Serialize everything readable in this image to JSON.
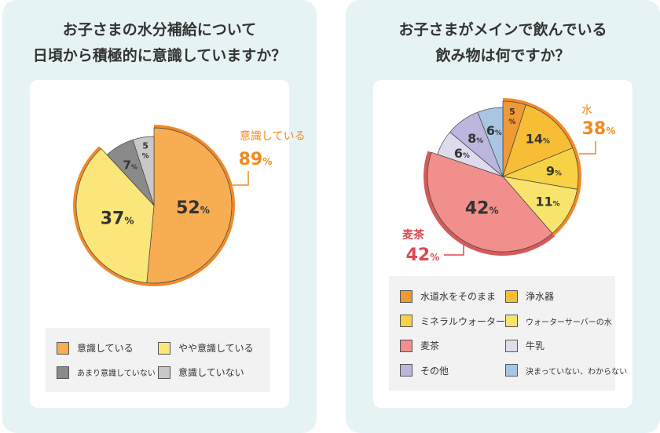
{
  "charts": [
    {
      "title_lines": [
        "お子さまの水分補給について",
        "日頃から積極的に意識していますか？"
      ]
    },
    {
      "title_lines": [
        "お子さまがメインで飲んでいる",
        "飲み物は何ですか？"
      ]
    }
  ],
  "chart_data": [
    {
      "type": "pie",
      "slices": [
        {
          "label": "意識している",
          "value": 52,
          "color": "#f7ad52",
          "highlight": true
        },
        {
          "label": "やや意識している",
          "value": 37,
          "color": "#fbe67a",
          "highlight": true
        },
        {
          "label": "あまり意識していない",
          "value": 7,
          "color": "#8a8a8a",
          "highlight": false
        },
        {
          "label": "意識していない",
          "value": 5,
          "color": "#c8c8c8",
          "highlight": false
        }
      ],
      "callouts": [
        {
          "label": "意識している",
          "value": "89",
          "unit": "%",
          "color": "#f08a1c"
        }
      ],
      "outline_color": "#f08a2a"
    },
    {
      "type": "pie",
      "slices": [
        {
          "label": "水道水をそのまま",
          "value": 5,
          "color": "#ef9a35",
          "highlight": true
        },
        {
          "label": "浄水器",
          "value": 14,
          "color": "#f6bd35",
          "highlight": true
        },
        {
          "label": "ミネラルウォーター",
          "value": 9,
          "color": "#f8d245",
          "highlight": true
        },
        {
          "label": "ウォーターサーバーの水",
          "value": 11,
          "color": "#f8e46c",
          "highlight": true
        },
        {
          "label": "麦茶",
          "value": 42,
          "color": "#f08f8c",
          "highlight": true
        },
        {
          "label": "牛乳",
          "value": 6,
          "color": "#dedbed",
          "highlight": false
        },
        {
          "label": "その他",
          "value": 8,
          "color": "#bcb6de",
          "highlight": false
        },
        {
          "label": "決まっていない、わからない",
          "value": 6,
          "color": "#a8c6e3",
          "highlight": false
        }
      ],
      "callouts": [
        {
          "label": "水",
          "value": "38",
          "unit": "%",
          "color": "#f08a1c"
        },
        {
          "label": "麦茶",
          "value": "42",
          "unit": "%",
          "color": "#e0474f"
        }
      ],
      "outline_color": "#f08a2a",
      "rim_color": "#d65a5a"
    }
  ]
}
